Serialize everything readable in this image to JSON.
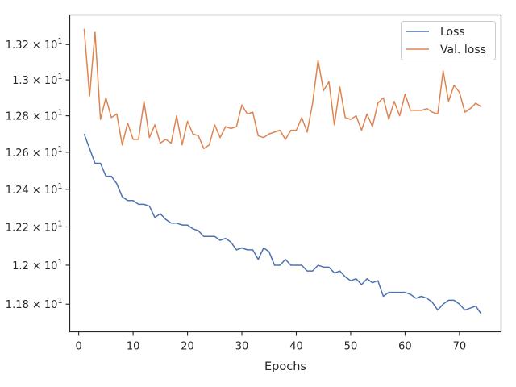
{
  "chart_data": {
    "type": "line",
    "title": "",
    "xlabel": "Epochs",
    "ylabel": "",
    "xlim": [
      -1.65,
      77.65
    ],
    "ylim": [
      11.66,
      13.37
    ],
    "y_scale": "log",
    "grid": false,
    "legend_position": "top-right",
    "x_ticks": [
      0,
      10,
      20,
      30,
      40,
      50,
      60,
      70
    ],
    "y_ticks": [
      {
        "value": 11.8,
        "mantissa": "1.18",
        "base": "10",
        "exp": "1"
      },
      {
        "value": 12.0,
        "mantissa": "1.2",
        "base": "10",
        "exp": "1"
      },
      {
        "value": 12.2,
        "mantissa": "1.22",
        "base": "10",
        "exp": "1"
      },
      {
        "value": 12.4,
        "mantissa": "1.24",
        "base": "10",
        "exp": "1"
      },
      {
        "value": 12.6,
        "mantissa": "1.26",
        "base": "10",
        "exp": "1"
      },
      {
        "value": 12.8,
        "mantissa": "1.28",
        "base": "10",
        "exp": "1"
      },
      {
        "value": 13.0,
        "mantissa": "1.3",
        "base": "10",
        "exp": "1"
      },
      {
        "value": 13.2,
        "mantissa": "1.32",
        "base": "10",
        "exp": "1"
      }
    ],
    "series": [
      {
        "name": "Loss",
        "color": "#4c72b0",
        "x": [
          1,
          2,
          3,
          4,
          5,
          6,
          7,
          8,
          9,
          10,
          11,
          12,
          13,
          14,
          15,
          16,
          17,
          18,
          19,
          20,
          21,
          22,
          23,
          24,
          25,
          26,
          27,
          28,
          29,
          30,
          31,
          32,
          33,
          34,
          35,
          36,
          37,
          38,
          39,
          40,
          41,
          42,
          43,
          44,
          45,
          46,
          47,
          48,
          49,
          50,
          51,
          52,
          53,
          54,
          55,
          56,
          57,
          58,
          59,
          60,
          61,
          62,
          63,
          64,
          65,
          66,
          67,
          68,
          69,
          70,
          71,
          72,
          73,
          74
        ],
        "values": [
          12.7,
          12.62,
          12.54,
          12.54,
          12.47,
          12.47,
          12.43,
          12.36,
          12.34,
          12.34,
          12.32,
          12.32,
          12.31,
          12.25,
          12.27,
          12.24,
          12.22,
          12.22,
          12.21,
          12.21,
          12.19,
          12.18,
          12.15,
          12.15,
          12.15,
          12.13,
          12.14,
          12.12,
          12.08,
          12.09,
          12.08,
          12.08,
          12.03,
          12.09,
          12.07,
          12.0,
          12.0,
          12.03,
          12.0,
          12.0,
          12.0,
          11.97,
          11.97,
          12.0,
          11.99,
          11.99,
          11.96,
          11.97,
          11.94,
          11.92,
          11.93,
          11.9,
          11.93,
          11.91,
          11.92,
          11.84,
          11.86,
          11.86,
          11.86,
          11.86,
          11.85,
          11.83,
          11.84,
          11.83,
          11.81,
          11.77,
          11.8,
          11.82,
          11.82,
          11.8,
          11.77,
          11.78,
          11.79,
          11.75
        ]
      },
      {
        "name": "Val. loss",
        "color": "#dd8452",
        "x": [
          1,
          2,
          3,
          4,
          5,
          6,
          7,
          8,
          9,
          10,
          11,
          12,
          13,
          14,
          15,
          16,
          17,
          18,
          19,
          20,
          21,
          22,
          23,
          24,
          25,
          26,
          27,
          28,
          29,
          30,
          31,
          32,
          33,
          34,
          35,
          36,
          37,
          38,
          39,
          40,
          41,
          42,
          43,
          44,
          45,
          46,
          47,
          48,
          49,
          50,
          51,
          52,
          53,
          54,
          55,
          56,
          57,
          58,
          59,
          60,
          61,
          62,
          63,
          64,
          65,
          66,
          67,
          68,
          69,
          70,
          71,
          72,
          73,
          74
        ],
        "values": [
          13.29,
          12.91,
          13.27,
          12.78,
          12.9,
          12.79,
          12.81,
          12.64,
          12.76,
          12.67,
          12.67,
          12.88,
          12.68,
          12.75,
          12.65,
          12.67,
          12.65,
          12.8,
          12.64,
          12.77,
          12.7,
          12.69,
          12.62,
          12.64,
          12.75,
          12.68,
          12.74,
          12.73,
          12.74,
          12.86,
          12.81,
          12.82,
          12.69,
          12.68,
          12.7,
          12.71,
          12.72,
          12.67,
          12.72,
          12.72,
          12.79,
          12.71,
          12.87,
          13.11,
          12.94,
          12.99,
          12.75,
          12.96,
          12.79,
          12.78,
          12.8,
          12.72,
          12.81,
          12.74,
          12.87,
          12.9,
          12.78,
          12.88,
          12.8,
          12.92,
          12.83,
          12.83,
          12.83,
          12.84,
          12.82,
          12.81,
          13.05,
          12.88,
          12.97,
          12.93,
          12.82,
          12.84,
          12.87,
          12.85
        ]
      }
    ]
  }
}
